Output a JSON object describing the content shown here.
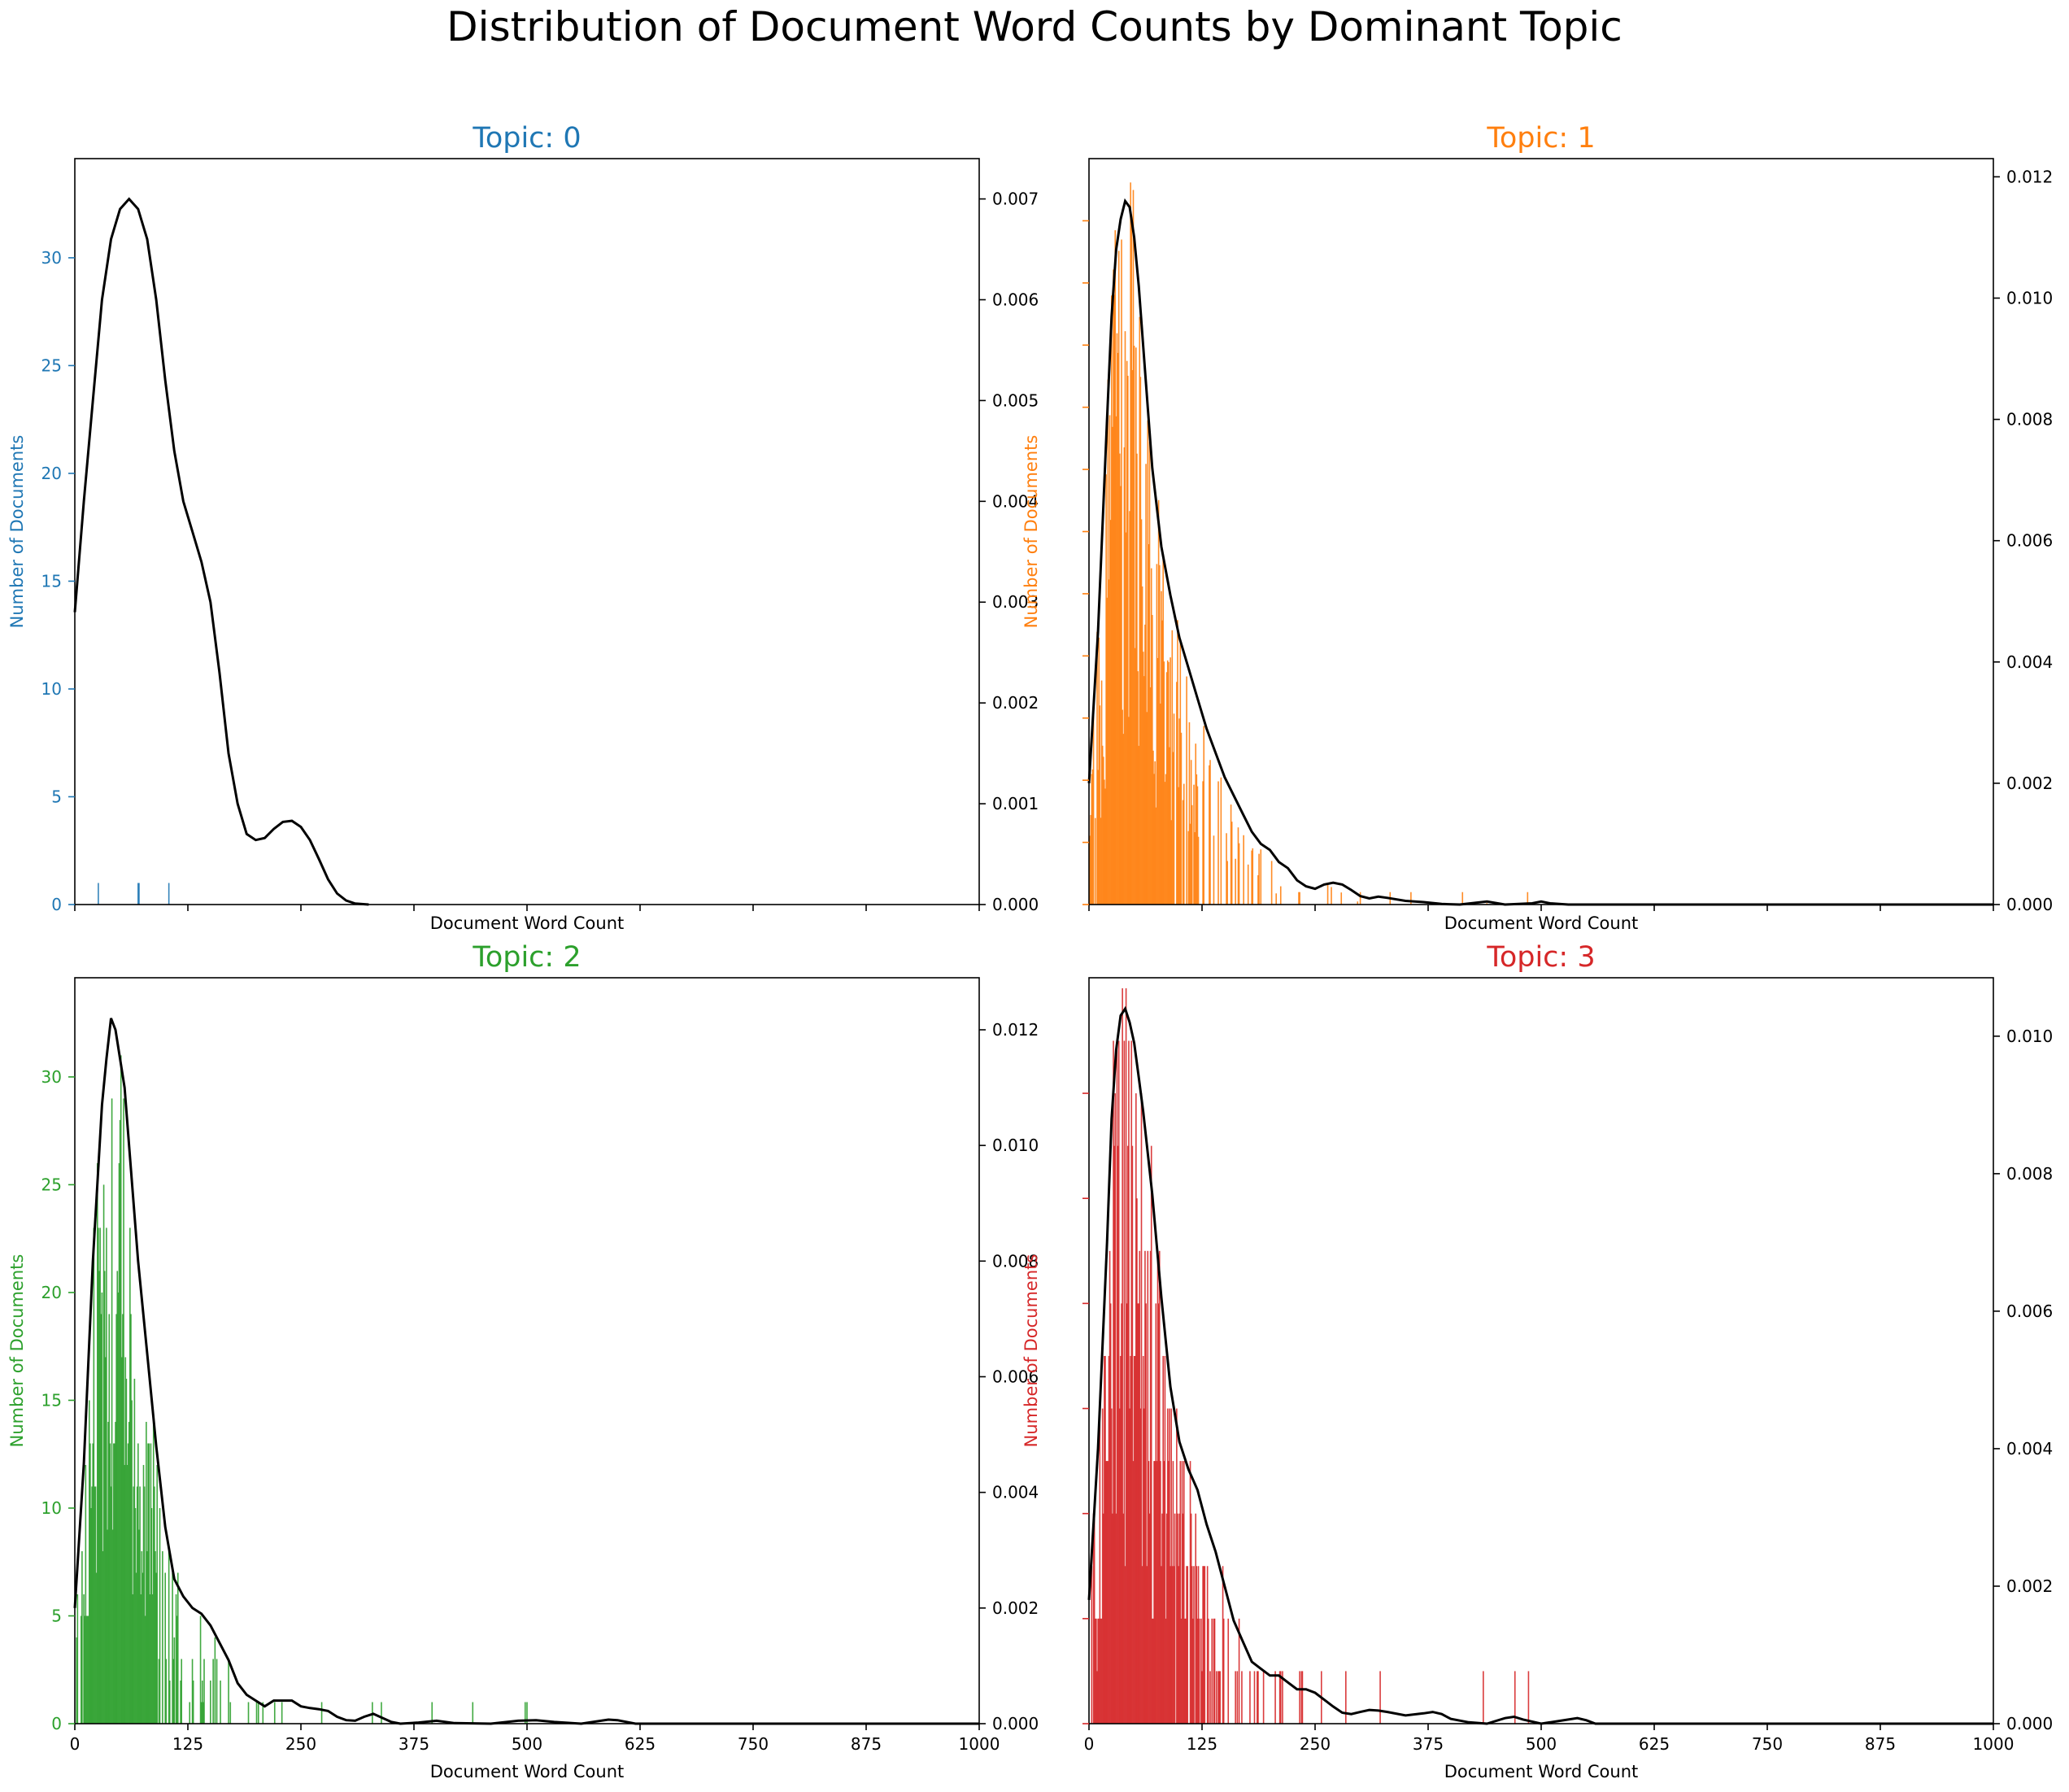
{
  "title": "Distribution of Document Word Counts by Dominant Topic",
  "chart_data": [
    {
      "type": "bar",
      "title": "Topic: 0",
      "color": "#1f77b4",
      "xlabel": "Document Word Count",
      "ylabel": "Number of Documents",
      "xlim": [
        0,
        1000
      ],
      "ylim_left": [
        0,
        34.6
      ],
      "ylim_right": [
        0,
        0.0074
      ],
      "xticks": [
        0,
        125,
        250,
        375,
        500,
        625,
        750,
        875,
        1000
      ],
      "xticklabels_shown": false,
      "yticks_left": [
        0,
        5,
        10,
        15,
        20,
        25,
        30
      ],
      "yticks_right": [
        0,
        0.001,
        0.002,
        0.003,
        0.004,
        0.005,
        0.006,
        0.007
      ],
      "ytick_format_right": 3,
      "bars": [
        [
          26,
          1
        ],
        [
          70,
          1
        ],
        [
          71,
          1
        ],
        [
          104,
          1
        ]
      ],
      "kde": [
        [
          0,
          0.0029
        ],
        [
          10,
          0.004
        ],
        [
          20,
          0.005
        ],
        [
          30,
          0.006
        ],
        [
          40,
          0.0066
        ],
        [
          50,
          0.0069
        ],
        [
          60,
          0.007
        ],
        [
          70,
          0.0069
        ],
        [
          80,
          0.0066
        ],
        [
          90,
          0.006
        ],
        [
          100,
          0.0052
        ],
        [
          110,
          0.0045
        ],
        [
          120,
          0.004
        ],
        [
          130,
          0.0037
        ],
        [
          140,
          0.0034
        ],
        [
          150,
          0.003
        ],
        [
          160,
          0.0023
        ],
        [
          170,
          0.0015
        ],
        [
          180,
          0.001
        ],
        [
          190,
          0.0007
        ],
        [
          200,
          0.00064
        ],
        [
          210,
          0.00066
        ],
        [
          220,
          0.00075
        ],
        [
          230,
          0.00082
        ],
        [
          240,
          0.00083
        ],
        [
          250,
          0.00077
        ],
        [
          260,
          0.00064
        ],
        [
          270,
          0.00045
        ],
        [
          280,
          0.00025
        ],
        [
          290,
          0.00011
        ],
        [
          300,
          4e-05
        ],
        [
          310,
          1e-05
        ],
        [
          325,
          0.0
        ]
      ]
    },
    {
      "type": "bar",
      "title": "Topic: 1",
      "color": "#ff7f0e",
      "xlabel": "Document Word Count",
      "ylabel": "Number of Documents",
      "xlim": [
        0,
        1000
      ],
      "ylim_left": [
        0,
        60
      ],
      "ylim_right": [
        0,
        0.0123
      ],
      "xticks": [
        0,
        125,
        250,
        375,
        500,
        625,
        750,
        875,
        1000
      ],
      "xticklabels_shown": false,
      "yticks_left": [
        0,
        5,
        10,
        15,
        20,
        25,
        30,
        35,
        40,
        45,
        50,
        55
      ],
      "yticklabels_left_shown": false,
      "yticks_right": [
        0,
        0.002,
        0.004,
        0.006,
        0.008,
        0.01,
        0.012
      ],
      "ytick_format_right": 3,
      "bars_generated": true,
      "bars_note": "",
      "kde": [
        [
          0,
          0.002
        ],
        [
          10,
          0.0045
        ],
        [
          20,
          0.008
        ],
        [
          25,
          0.0097
        ],
        [
          30,
          0.0108
        ],
        [
          35,
          0.0113
        ],
        [
          40,
          0.0116
        ],
        [
          45,
          0.0115
        ],
        [
          50,
          0.011
        ],
        [
          55,
          0.0102
        ],
        [
          60,
          0.0092
        ],
        [
          70,
          0.0072
        ],
        [
          80,
          0.0059
        ],
        [
          90,
          0.0051
        ],
        [
          100,
          0.0044
        ],
        [
          110,
          0.0039
        ],
        [
          120,
          0.0034
        ],
        [
          130,
          0.0029
        ],
        [
          140,
          0.0025
        ],
        [
          150,
          0.0021
        ],
        [
          160,
          0.0018
        ],
        [
          170,
          0.0015
        ],
        [
          180,
          0.0012
        ],
        [
          190,
          0.001
        ],
        [
          200,
          0.0009
        ],
        [
          210,
          0.0007
        ],
        [
          220,
          0.0006
        ],
        [
          230,
          0.0004
        ],
        [
          240,
          0.0003
        ],
        [
          250,
          0.00026
        ],
        [
          260,
          0.00033
        ],
        [
          270,
          0.00036
        ],
        [
          280,
          0.00033
        ],
        [
          290,
          0.00024
        ],
        [
          300,
          0.00014
        ],
        [
          310,
          0.0001
        ],
        [
          320,
          0.00013
        ],
        [
          330,
          0.00011
        ],
        [
          350,
          6e-05
        ],
        [
          370,
          4e-05
        ],
        [
          390,
          1e-05
        ],
        [
          410,
          0.0
        ],
        [
          440,
          5e-05
        ],
        [
          460,
          0.0
        ],
        [
          490,
          2e-05
        ],
        [
          500,
          5e-05
        ],
        [
          510,
          2e-05
        ],
        [
          530,
          0.0
        ],
        [
          1000,
          0.0
        ]
      ]
    },
    {
      "type": "bar",
      "title": "Topic: 2",
      "color": "#2ca02c",
      "xlabel": "Document Word Count",
      "ylabel": "Number of Documents",
      "xlim": [
        0,
        1000
      ],
      "ylim_left": [
        0,
        34.6
      ],
      "ylim_right": [
        0,
        0.0129
      ],
      "xticks": [
        0,
        125,
        250,
        375,
        500,
        625,
        750,
        875,
        1000
      ],
      "xticklabels_shown": true,
      "yticks_left": [
        0,
        5,
        10,
        15,
        20,
        25,
        30
      ],
      "yticks_right": [
        0,
        0.002,
        0.004,
        0.006,
        0.008,
        0.01,
        0.012
      ],
      "ytick_format_right": 3,
      "bars_generated": true,
      "kde": [
        [
          0,
          0.002
        ],
        [
          10,
          0.0045
        ],
        [
          20,
          0.008
        ],
        [
          30,
          0.0107
        ],
        [
          35,
          0.0115
        ],
        [
          40,
          0.0122
        ],
        [
          45,
          0.012
        ],
        [
          50,
          0.0115
        ],
        [
          55,
          0.011
        ],
        [
          60,
          0.01
        ],
        [
          70,
          0.008
        ],
        [
          80,
          0.0064
        ],
        [
          90,
          0.0048
        ],
        [
          100,
          0.0034
        ],
        [
          110,
          0.0025
        ],
        [
          120,
          0.0022
        ],
        [
          130,
          0.002
        ],
        [
          140,
          0.0019
        ],
        [
          150,
          0.0017
        ],
        [
          160,
          0.0014
        ],
        [
          170,
          0.0011
        ],
        [
          180,
          0.0007
        ],
        [
          190,
          0.0005
        ],
        [
          200,
          0.0004
        ],
        [
          210,
          0.0003
        ],
        [
          220,
          0.0004
        ],
        [
          230,
          0.0004
        ],
        [
          240,
          0.0004
        ],
        [
          250,
          0.0003
        ],
        [
          260,
          0.00027
        ],
        [
          270,
          0.00025
        ],
        [
          280,
          0.00022
        ],
        [
          290,
          0.00012
        ],
        [
          300,
          6e-05
        ],
        [
          310,
          5e-05
        ],
        [
          320,
          0.00012
        ],
        [
          330,
          0.00017
        ],
        [
          340,
          0.0001
        ],
        [
          350,
          3e-05
        ],
        [
          360,
          0.0
        ],
        [
          380,
          2e-05
        ],
        [
          400,
          5e-05
        ],
        [
          420,
          1e-05
        ],
        [
          460,
          0.0
        ],
        [
          490,
          5e-05
        ],
        [
          510,
          6e-05
        ],
        [
          530,
          3e-05
        ],
        [
          560,
          0.0
        ],
        [
          590,
          7e-05
        ],
        [
          600,
          6e-05
        ],
        [
          620,
          0.0
        ],
        [
          1000,
          0.0
        ]
      ]
    },
    {
      "type": "bar",
      "title": "Topic: 3",
      "color": "#d62728",
      "xlabel": "Document Word Count",
      "ylabel": "Number of Documents",
      "xlim": [
        0,
        1000
      ],
      "ylim_left": [
        0,
        14.2
      ],
      "ylim_right": [
        0,
        0.01085
      ],
      "xticks": [
        0,
        125,
        250,
        375,
        500,
        625,
        750,
        875,
        1000
      ],
      "xticklabels_shown": true,
      "yticks_left": [
        0,
        2,
        4,
        6,
        8,
        10,
        12
      ],
      "yticklabels_left_shown": false,
      "yticks_right": [
        0,
        0.002,
        0.004,
        0.006,
        0.008,
        0.01
      ],
      "ytick_format_right": 3,
      "bars_generated": true,
      "kde": [
        [
          0,
          0.0018
        ],
        [
          10,
          0.004
        ],
        [
          20,
          0.007
        ],
        [
          25,
          0.0088
        ],
        [
          30,
          0.0098
        ],
        [
          35,
          0.0103
        ],
        [
          40,
          0.0104
        ],
        [
          45,
          0.0102
        ],
        [
          50,
          0.0099
        ],
        [
          55,
          0.0094
        ],
        [
          60,
          0.0089
        ],
        [
          70,
          0.0077
        ],
        [
          80,
          0.0062
        ],
        [
          90,
          0.0049
        ],
        [
          100,
          0.0041
        ],
        [
          110,
          0.0037
        ],
        [
          120,
          0.0034
        ],
        [
          130,
          0.0029
        ],
        [
          140,
          0.0025
        ],
        [
          150,
          0.002
        ],
        [
          160,
          0.0015
        ],
        [
          170,
          0.0012
        ],
        [
          180,
          0.0009
        ],
        [
          190,
          0.0008
        ],
        [
          200,
          0.0007
        ],
        [
          210,
          0.0007
        ],
        [
          220,
          0.0006
        ],
        [
          230,
          0.0005
        ],
        [
          240,
          0.0005
        ],
        [
          250,
          0.00045
        ],
        [
          260,
          0.00035
        ],
        [
          270,
          0.00025
        ],
        [
          280,
          0.00016
        ],
        [
          290,
          0.00014
        ],
        [
          300,
          0.00017
        ],
        [
          310,
          0.0002
        ],
        [
          320,
          0.00019
        ],
        [
          330,
          0.00017
        ],
        [
          350,
          0.00012
        ],
        [
          370,
          0.00015
        ],
        [
          380,
          0.00017
        ],
        [
          390,
          0.00014
        ],
        [
          400,
          7e-05
        ],
        [
          420,
          2e-05
        ],
        [
          440,
          0.0
        ],
        [
          460,
          8e-05
        ],
        [
          470,
          0.0001
        ],
        [
          480,
          6e-05
        ],
        [
          500,
          0.0
        ],
        [
          520,
          4e-05
        ],
        [
          540,
          8e-05
        ],
        [
          550,
          5e-05
        ],
        [
          560,
          0.0
        ],
        [
          1000,
          0.0
        ]
      ]
    }
  ]
}
